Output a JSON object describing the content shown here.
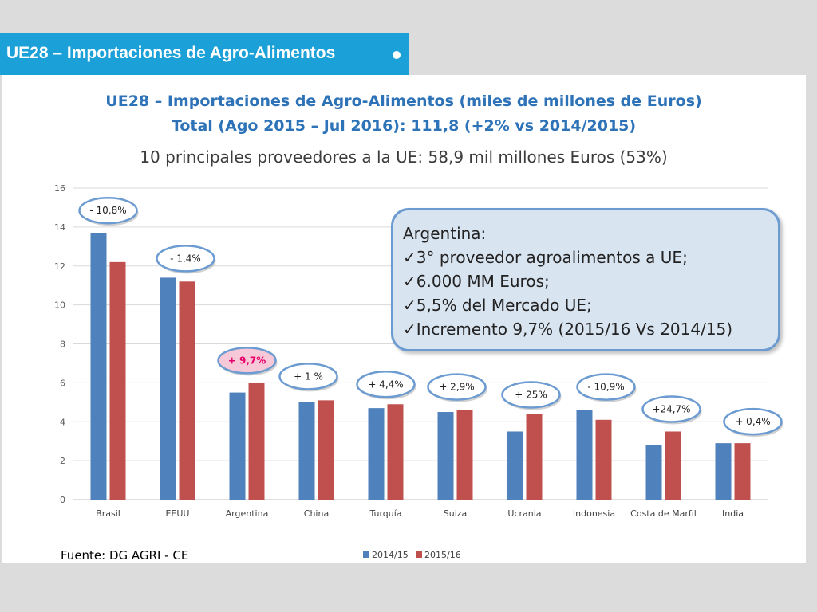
{
  "header": {
    "title": "UE28 – Importaciones de Agro-Alimentos"
  },
  "slide": {
    "title_line1": "UE28 – Importaciones de Agro-Alimentos (miles de millones de Euros)",
    "title_line2": "Total (Ago 2015 – Jul 2016): 111,8  (+2% vs 2014/2015)",
    "subtitle": "10 principales proveedores a la UE: 58,9 mil millones Euros (53%)",
    "source": "Fuente: DG AGRI - CE"
  },
  "callout": {
    "heading": "Argentina:",
    "items": [
      "3° proveedor agroalimentos a UE;",
      "6.000 MM Euros;",
      "5,5% del Mercado UE;",
      "Incremento 9,7% (2015/16 Vs 2014/15)"
    ]
  },
  "colors": {
    "header_bg": "#1ba0d8",
    "title_blue": "#2e73b8",
    "series_2014": "#4f81bd",
    "series_2015": "#c0504d",
    "bubble_border": "#6b9bd1",
    "bubble_highlight_bg": "#f7c9d8",
    "bubble_highlight_text": "#e5006a"
  },
  "chart_data": {
    "type": "bar",
    "categories": [
      "Brasil",
      "EEUU",
      "Argentina",
      "China",
      "Turquía",
      "Suiza",
      "Ucrania",
      "Indonesia",
      "Costa de Marfil",
      "India"
    ],
    "series": [
      {
        "name": "2014/15",
        "color": "#4f81bd",
        "values": [
          13.7,
          11.4,
          5.5,
          5.0,
          4.7,
          4.5,
          3.5,
          4.6,
          2.8,
          2.9
        ]
      },
      {
        "name": "2015/16",
        "color": "#c0504d",
        "values": [
          12.2,
          11.2,
          6.0,
          5.1,
          4.9,
          4.6,
          4.4,
          4.1,
          3.5,
          2.9
        ]
      }
    ],
    "ylim": [
      0,
      16
    ],
    "yticks": [
      0,
      2,
      4,
      6,
      8,
      10,
      12,
      14,
      16
    ],
    "grid": true,
    "legend": "bottom",
    "annotations": [
      "- 10,8%",
      "- 1,4%",
      "+ 9,7%",
      "+ 1 %",
      "+ 4,4%",
      "+ 2,9%",
      "+ 25%",
      "- 10,9%",
      "+24,7%",
      "+ 0,4%"
    ],
    "highlight_category": "Argentina"
  }
}
